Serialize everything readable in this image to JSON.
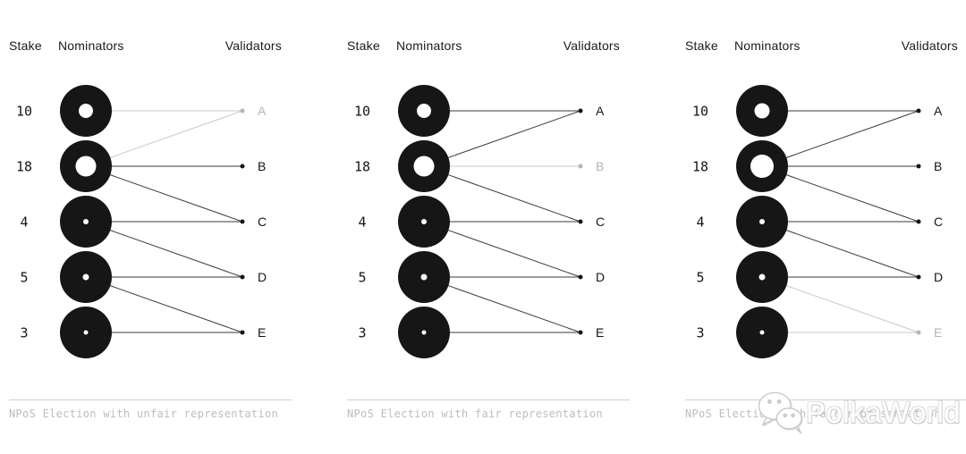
{
  "colors": {
    "background": "#ffffff",
    "ink": "#161616",
    "edge": "#3a3a3a",
    "muted_edge": "#c9c9c9",
    "muted_node": "#b5b5b5",
    "divider": "#cfcfcf",
    "caption": "#bdbdbd"
  },
  "watermark": {
    "text": "PolkaWorld",
    "icon": "wechat-icon"
  },
  "panels": [
    {
      "caption": "NPoS Election with unfair representation",
      "headers": {
        "stake": "Stake",
        "nominators": "Nominators",
        "validators": "Validators"
      },
      "nominators": [
        {
          "stake": "10",
          "hole_diameter": 16
        },
        {
          "stake": "18",
          "hole_diameter": 23
        },
        {
          "stake": "4",
          "hole_diameter": 6
        },
        {
          "stake": "5",
          "hole_diameter": 7
        },
        {
          "stake": "3",
          "hole_diameter": 5
        }
      ],
      "validators": [
        {
          "label": "A",
          "muted": true
        },
        {
          "label": "B",
          "muted": false
        },
        {
          "label": "C",
          "muted": false
        },
        {
          "label": "D",
          "muted": false
        },
        {
          "label": "E",
          "muted": false
        }
      ],
      "edges": [
        {
          "from": 0,
          "to": 0,
          "muted": true
        },
        {
          "from": 1,
          "to": 0,
          "muted": true
        },
        {
          "from": 1,
          "to": 1,
          "muted": false
        },
        {
          "from": 1,
          "to": 2,
          "muted": false
        },
        {
          "from": 2,
          "to": 2,
          "muted": false
        },
        {
          "from": 2,
          "to": 3,
          "muted": false
        },
        {
          "from": 3,
          "to": 3,
          "muted": false
        },
        {
          "from": 3,
          "to": 4,
          "muted": false
        },
        {
          "from": 4,
          "to": 4,
          "muted": false
        }
      ]
    },
    {
      "caption": "NPoS Election with fair representation",
      "headers": {
        "stake": "Stake",
        "nominators": "Nominators",
        "validators": "Validators"
      },
      "nominators": [
        {
          "stake": "10",
          "hole_diameter": 16
        },
        {
          "stake": "18",
          "hole_diameter": 23
        },
        {
          "stake": "4",
          "hole_diameter": 6
        },
        {
          "stake": "5",
          "hole_diameter": 7
        },
        {
          "stake": "3",
          "hole_diameter": 5
        }
      ],
      "validators": [
        {
          "label": "A",
          "muted": false
        },
        {
          "label": "B",
          "muted": true
        },
        {
          "label": "C",
          "muted": false
        },
        {
          "label": "D",
          "muted": false
        },
        {
          "label": "E",
          "muted": false
        }
      ],
      "edges": [
        {
          "from": 0,
          "to": 0,
          "muted": false
        },
        {
          "from": 1,
          "to": 0,
          "muted": false
        },
        {
          "from": 1,
          "to": 1,
          "muted": true
        },
        {
          "from": 1,
          "to": 2,
          "muted": false
        },
        {
          "from": 2,
          "to": 2,
          "muted": false
        },
        {
          "from": 2,
          "to": 3,
          "muted": false
        },
        {
          "from": 3,
          "to": 3,
          "muted": false
        },
        {
          "from": 3,
          "to": 4,
          "muted": false
        },
        {
          "from": 4,
          "to": 4,
          "muted": false
        }
      ]
    },
    {
      "caption": "NPoS Election with fair representation",
      "headers": {
        "stake": "Stake",
        "nominators": "Nominators",
        "validators": "Validators"
      },
      "nominators": [
        {
          "stake": "10",
          "hole_diameter": 17
        },
        {
          "stake": "18",
          "hole_diameter": 26
        },
        {
          "stake": "4",
          "hole_diameter": 6
        },
        {
          "stake": "5",
          "hole_diameter": 7
        },
        {
          "stake": "3",
          "hole_diameter": 5
        }
      ],
      "validators": [
        {
          "label": "A",
          "muted": false
        },
        {
          "label": "B",
          "muted": false
        },
        {
          "label": "C",
          "muted": false
        },
        {
          "label": "D",
          "muted": false
        },
        {
          "label": "E",
          "muted": true
        }
      ],
      "edges": [
        {
          "from": 0,
          "to": 0,
          "muted": false
        },
        {
          "from": 1,
          "to": 0,
          "muted": false
        },
        {
          "from": 1,
          "to": 1,
          "muted": false
        },
        {
          "from": 1,
          "to": 2,
          "muted": false
        },
        {
          "from": 2,
          "to": 2,
          "muted": false
        },
        {
          "from": 2,
          "to": 3,
          "muted": false
        },
        {
          "from": 3,
          "to": 3,
          "muted": false
        },
        {
          "from": 3,
          "to": 4,
          "muted": true
        },
        {
          "from": 4,
          "to": 4,
          "muted": true
        }
      ]
    }
  ]
}
